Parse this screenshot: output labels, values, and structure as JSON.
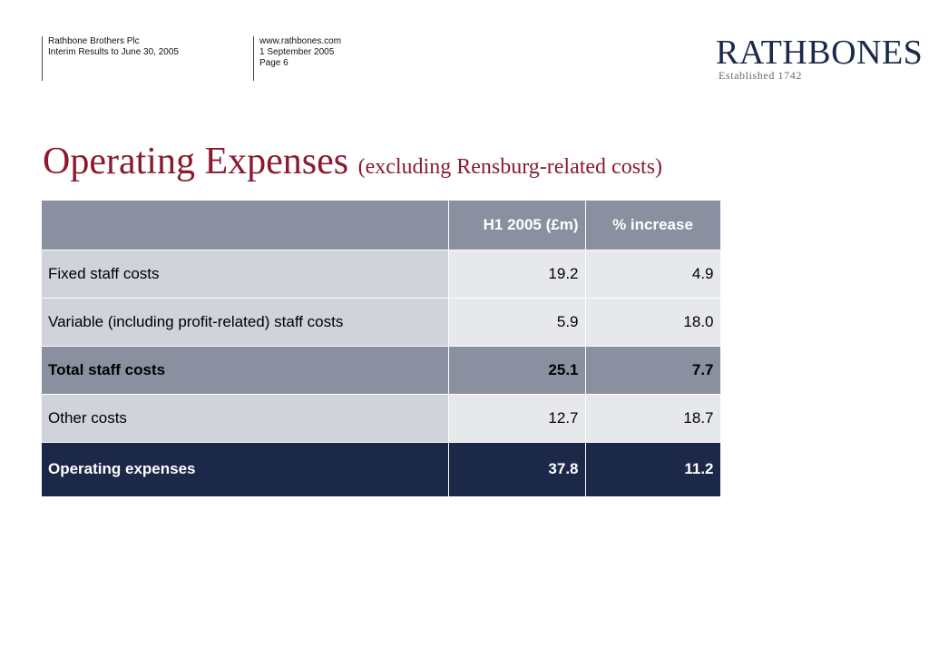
{
  "header": {
    "company": "Rathbone Brothers Plc",
    "report": "Interim Results to June 30, 2005",
    "website": "www.rathbones.com",
    "date": "1 September 2005",
    "page": "Page 6"
  },
  "logo": {
    "wordmark": "RATHBONES",
    "tagline": "Established 1742"
  },
  "title": {
    "main": "Operating Expenses",
    "sub": "(excluding Rensburg-related costs)"
  },
  "table": {
    "columns": [
      "",
      "H1 2005 (£m)",
      "% increase"
    ],
    "rows": [
      {
        "label": "Fixed staff costs",
        "h1": "19.2",
        "pct": "4.9"
      },
      {
        "label": "Variable (including profit-related) staff costs",
        "h1": "5.9",
        "pct": "18.0"
      },
      {
        "label": "Total staff costs",
        "h1": "25.1",
        "pct": "7.7"
      },
      {
        "label": "Other costs",
        "h1": "12.7",
        "pct": "18.7"
      },
      {
        "label": "Operating expenses",
        "h1": "37.8",
        "pct": "11.2"
      }
    ]
  },
  "colors": {
    "title": "#8b1a2e",
    "header_band": "#8a909f",
    "row_label_bg": "#d0d3d9",
    "row_value_bg": "#e6e8ec",
    "total_row": "#1c2848",
    "logo": "#1b2a4a"
  }
}
